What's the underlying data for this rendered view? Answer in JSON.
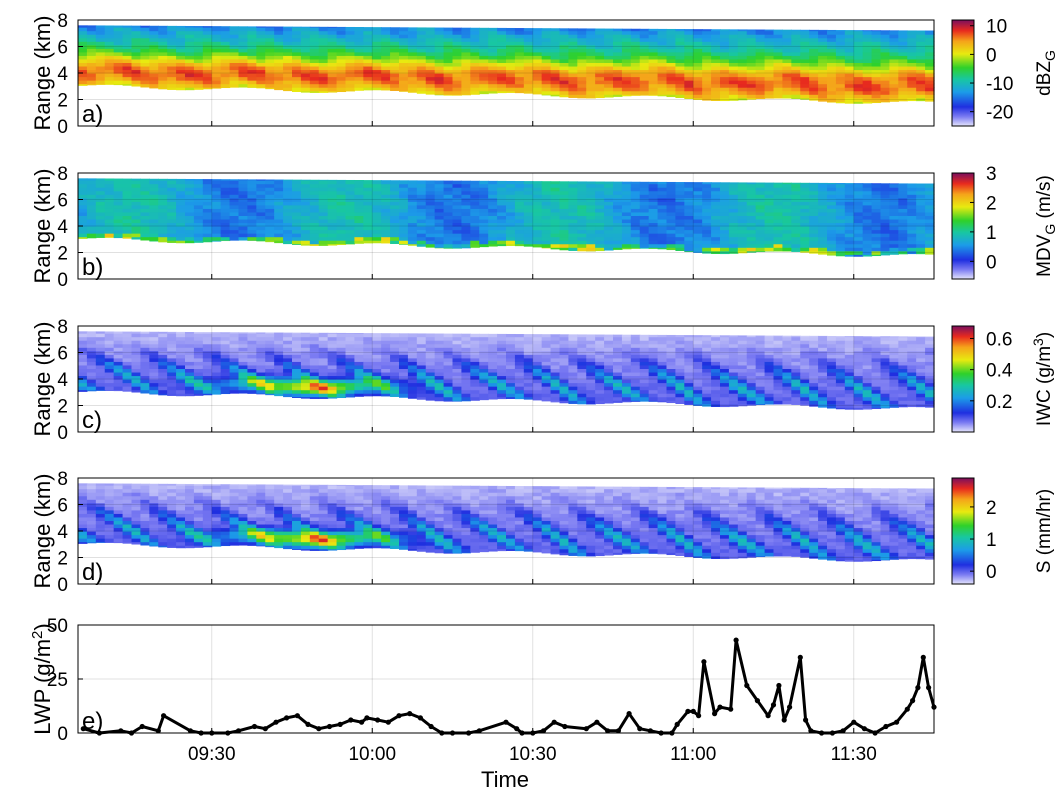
{
  "figure": {
    "xlabel": "Time",
    "x_ticks": [
      "09:30",
      "10:00",
      "10:30",
      "11:00",
      "11:30"
    ],
    "x_tick_minutes": [
      570,
      600,
      630,
      660,
      690
    ],
    "x_range_minutes": [
      545,
      705
    ]
  },
  "panels": [
    {
      "letter": "a)",
      "ylabel": "Range (km)",
      "yticks": [
        "0",
        "2",
        "4",
        "6",
        "8"
      ],
      "cbar_label": "dBZ",
      "cbar_sub": "G",
      "cbar_unit": "",
      "cbar_ticks": [
        "10",
        "0",
        "-10",
        "-20"
      ],
      "cbar_tick_values": [
        10,
        0,
        -10,
        -20
      ],
      "cbar_range": [
        -25,
        12
      ],
      "colormap": "jet"
    },
    {
      "letter": "b)",
      "ylabel": "Range (km)",
      "yticks": [
        "0",
        "2",
        "4",
        "6",
        "8"
      ],
      "cbar_label": "MDV",
      "cbar_sub": "G",
      "cbar_unit": " (m/s)",
      "cbar_ticks": [
        "3",
        "2",
        "1",
        "0"
      ],
      "cbar_tick_values": [
        3,
        2,
        1,
        0
      ],
      "cbar_range": [
        -0.6,
        3
      ],
      "colormap": "jet"
    },
    {
      "letter": "c)",
      "ylabel": "Range (km)",
      "yticks": [
        "0",
        "2",
        "4",
        "6",
        "8"
      ],
      "cbar_label": "IWC (g/m",
      "cbar_sup": "3",
      "cbar_unit": ")",
      "cbar_ticks": [
        "0.6",
        "0.4",
        "0.2"
      ],
      "cbar_tick_values": [
        0.6,
        0.4,
        0.2
      ],
      "cbar_range": [
        0,
        0.68
      ],
      "colormap": "jet"
    },
    {
      "letter": "d)",
      "ylabel": "Range (km)",
      "yticks": [
        "0",
        "2",
        "4",
        "6",
        "8"
      ],
      "cbar_label": "S (mm/hr)",
      "cbar_ticks": [
        "2",
        "1",
        "0"
      ],
      "cbar_tick_values": [
        2,
        1,
        0
      ],
      "cbar_range": [
        -0.4,
        2.9
      ],
      "colormap": "jet"
    }
  ],
  "chart_data": [
    {
      "type": "heatmap",
      "panel": "a)",
      "quantity": "dBZG",
      "x_range": [
        "09:15",
        "11:45"
      ],
      "y_range_km": [
        0,
        8
      ],
      "zlim": [
        -25,
        12
      ],
      "echo_top_km": [
        7.6,
        7.2
      ],
      "echo_base_km": [
        3.0,
        1.7
      ],
      "max_region_km": [
        3.5,
        5.5
      ]
    },
    {
      "type": "heatmap",
      "panel": "b)",
      "quantity": "MDVG",
      "x_range": [
        "09:15",
        "11:45"
      ],
      "y_range_km": [
        0,
        8
      ],
      "zlim": [
        -0.6,
        3
      ]
    },
    {
      "type": "heatmap",
      "panel": "c)",
      "quantity": "IWC",
      "x_range": [
        "09:15",
        "11:45"
      ],
      "y_range_km": [
        0,
        8
      ],
      "zlim": [
        0,
        0.68
      ]
    },
    {
      "type": "heatmap",
      "panel": "d)",
      "quantity": "S",
      "x_range": [
        "09:15",
        "11:45"
      ],
      "y_range_km": [
        0,
        8
      ],
      "zlim": [
        -0.4,
        2.9
      ]
    },
    {
      "type": "line",
      "panel": "e)",
      "ylabel": "LWP (g/m",
      "ylabel_sup": "2",
      "ylabel_end": ")",
      "yticks": [
        "0",
        "25",
        "50"
      ],
      "ylim": [
        0,
        50
      ],
      "x_minutes": [
        546,
        549,
        553,
        555,
        557,
        560,
        561,
        566,
        568,
        570,
        573,
        575,
        578,
        580,
        582,
        584,
        586,
        588,
        590,
        592,
        594,
        596,
        598,
        599,
        601,
        603,
        605,
        607,
        609,
        611,
        613,
        615,
        618,
        620,
        625,
        627,
        628,
        630,
        632,
        634,
        636,
        640,
        642,
        644,
        646,
        648,
        650,
        652,
        654,
        656,
        657,
        659,
        660,
        661,
        662,
        664,
        665,
        667,
        668,
        670,
        672,
        674,
        675,
        676,
        677,
        678,
        680,
        681,
        682,
        684,
        686,
        688,
        690,
        692,
        694,
        696,
        698,
        700,
        701,
        702,
        703,
        704,
        705
      ],
      "values": [
        2,
        0,
        1,
        0,
        3,
        1,
        8,
        1,
        0,
        0,
        0,
        1,
        3,
        2,
        5,
        7,
        8,
        4,
        2,
        3,
        4,
        6,
        5,
        7,
        6,
        5,
        8,
        9,
        7,
        3,
        0,
        0,
        0,
        1,
        5,
        2,
        0,
        0,
        1,
        5,
        3,
        2,
        5,
        1,
        1,
        9,
        2,
        1,
        0,
        0,
        4,
        10,
        10,
        8,
        33,
        9,
        12,
        11,
        43,
        22,
        15,
        8,
        13,
        22,
        6,
        12,
        35,
        6,
        1,
        0,
        0,
        1,
        5,
        2,
        0,
        3,
        5,
        11,
        15,
        21,
        35,
        21,
        12
      ]
    }
  ]
}
